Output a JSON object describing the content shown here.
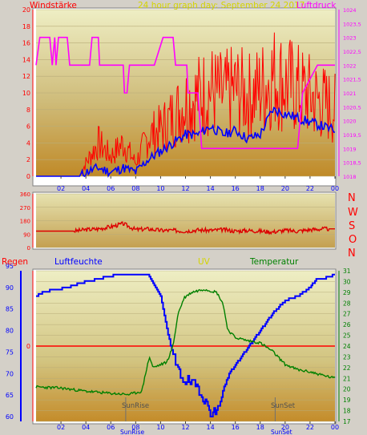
{
  "header": {
    "left_title": "Windstärke",
    "center_title": "24 hour graph day:  September 24 2017",
    "right_title": "Luftdruck"
  },
  "direction_labels": [
    "N",
    "W",
    "S",
    "O",
    "N"
  ],
  "bottom_header": {
    "regen": "Regen",
    "luftfeuchte": "Luftfeuchte",
    "uv": "UV",
    "temperatur": "Temperatur"
  },
  "colors": {
    "wind_gust": "#ff0000",
    "wind_avg": "#0000ff",
    "pressure": "#ff00ff",
    "direction": "#dd0000",
    "humidity": "#0000ff",
    "temperature": "#008000",
    "rain": "#ff0000",
    "title_red": "#ff0000",
    "title_yellow": "#d4d400",
    "axis_blue": "#0000ff",
    "axis_green": "#008000"
  },
  "chart_data": [
    {
      "type": "line",
      "panel": "wind_pressure",
      "x_ticks": [
        "02",
        "04",
        "06",
        "08",
        "10",
        "12",
        "14",
        "16",
        "18",
        "20",
        "22",
        "00"
      ],
      "ylim_left": [
        0,
        20
      ],
      "yticks_left": [
        0,
        2,
        4,
        6,
        8,
        10,
        12,
        14,
        16,
        18,
        20
      ],
      "ylim_right": [
        1018,
        1024
      ],
      "yticks_right": [
        "1018",
        "1018,5",
        "1019",
        "1019,5",
        "1020",
        "1020,5",
        "1021",
        "1021,5",
        "1022",
        "1022,5",
        "1023",
        "1023,5",
        "1024"
      ],
      "series": [
        {
          "name": "Windstärke",
          "axis": "left",
          "x": [
            0,
            3,
            3.5,
            4,
            5,
            6,
            7,
            8,
            9,
            10,
            11,
            12,
            13,
            14,
            15,
            16,
            17,
            18,
            19,
            20,
            21,
            22,
            23,
            24
          ],
          "values": [
            0,
            0,
            0,
            2,
            5,
            3,
            5,
            2,
            6,
            7,
            9,
            11,
            12,
            13,
            12,
            13,
            12,
            13,
            15,
            14,
            13,
            12,
            11,
            10
          ]
        },
        {
          "name": "Windstärke avg",
          "axis": "left",
          "x": [
            0,
            3,
            3.5,
            4,
            5,
            6,
            7,
            8,
            9,
            10,
            11,
            12,
            13,
            14,
            15,
            16,
            17,
            18,
            19,
            20,
            21,
            22,
            23,
            24
          ],
          "values": [
            0,
            0,
            0,
            0.5,
            1,
            0.5,
            1,
            0.5,
            2,
            3,
            4,
            5,
            5,
            6,
            5,
            5.5,
            4.5,
            5,
            8,
            7.5,
            7,
            6.5,
            6,
            5.5
          ]
        },
        {
          "name": "Luftdruck",
          "axis": "right",
          "x": [
            0,
            0.3,
            1.1,
            1.3,
            1.5,
            1.6,
            1.8,
            2.5,
            2.7,
            4.3,
            4.5,
            5.0,
            5.1,
            7.0,
            7.1,
            7.3,
            7.5,
            7.6,
            9.5,
            10.2,
            11.0,
            11.2,
            12.1,
            12.2,
            13.0,
            13.3,
            13.4,
            16.4,
            16.5,
            18.9,
            19.5,
            20.5,
            21.0,
            21.4,
            22.6,
            23.3,
            24
          ],
          "values": [
            1022,
            1023,
            1023,
            1022,
            1023,
            1022,
            1023,
            1023,
            1022,
            1022,
            1023,
            1023,
            1022,
            1022,
            1021,
            1021,
            1022,
            1022,
            1022,
            1023,
            1023,
            1022,
            1022,
            1021,
            1021,
            1019,
            1019,
            1019,
            1019,
            1019,
            1019,
            1019,
            1019,
            1021,
            1022,
            1022,
            1022
          ]
        }
      ]
    },
    {
      "type": "line",
      "panel": "wind_direction",
      "x_ticks": [
        "02",
        "04",
        "06",
        "08",
        "10",
        "12",
        "14",
        "16",
        "18",
        "20",
        "22",
        "00"
      ],
      "ylim": [
        0,
        360
      ],
      "yticks": [
        0,
        90,
        180,
        270,
        360
      ],
      "series": [
        {
          "name": "Windrichtung",
          "x": [
            0,
            2,
            3,
            4,
            5,
            6,
            7,
            8,
            9,
            10,
            11,
            12,
            13,
            14,
            15,
            16,
            17,
            18,
            19,
            20,
            21,
            22,
            23,
            24
          ],
          "values": [
            110,
            110,
            110,
            120,
            125,
            140,
            160,
            120,
            125,
            115,
            115,
            110,
            118,
            115,
            120,
            110,
            115,
            110,
            105,
            115,
            110,
            120,
            125,
            125
          ]
        }
      ]
    },
    {
      "type": "line",
      "panel": "humidity_temperature",
      "x_ticks": [
        "02",
        "04",
        "06",
        "08",
        "10",
        "12",
        "14",
        "16",
        "18",
        "20",
        "22",
        "00"
      ],
      "ylim_left": [
        60,
        95
      ],
      "yticks_left": [
        60,
        65,
        70,
        75,
        80,
        85,
        90,
        95
      ],
      "ylim_right": [
        17,
        31
      ],
      "yticks_right": [
        17,
        18,
        19,
        20,
        21,
        22,
        23,
        24,
        25,
        26,
        27,
        28,
        29,
        30,
        31
      ],
      "annotations": [
        "SunRise",
        "SunSet"
      ],
      "series": [
        {
          "name": "Luftfeuchte",
          "axis": "left",
          "x": [
            0,
            0.6,
            2.5,
            3.5,
            5.0,
            6.5,
            8.0,
            9.0,
            10.0,
            10.6,
            11.2,
            11.7,
            12.3,
            13.0,
            14.0,
            14.5,
            15.0,
            15.5,
            16.0,
            17.0,
            18.0,
            19.0,
            20.0,
            21.0,
            22.0,
            22.5,
            23.0,
            24
          ],
          "values": [
            88,
            89,
            90,
            91,
            92,
            93,
            93,
            93,
            88,
            79,
            72,
            69,
            68,
            67,
            61,
            61,
            66,
            70,
            72,
            76,
            80,
            84,
            87,
            88,
            90,
            92,
            92,
            93
          ]
        },
        {
          "name": "Temperatur",
          "axis": "right",
          "x": [
            0,
            2,
            4,
            6,
            7.5,
            8.5,
            8.8,
            9.1,
            9.4,
            10.5,
            11.0,
            11.4,
            11.9,
            12.5,
            13.5,
            14.5,
            15.0,
            15.4,
            16.0,
            17.0,
            18.0,
            19.0,
            20.0,
            21.0,
            22.0,
            23.0,
            24
          ],
          "values": [
            20.2,
            20.1,
            19.8,
            19.6,
            19.5,
            19.8,
            21.5,
            23.0,
            22.0,
            22.5,
            24.0,
            27.0,
            28.5,
            29.0,
            29.3,
            29.0,
            28.0,
            25.5,
            24.8,
            24.5,
            24.3,
            23.5,
            22.3,
            21.8,
            21.6,
            21.3,
            21.0
          ]
        },
        {
          "name": "Regen",
          "axis": "rain",
          "x": [
            0,
            24
          ],
          "values": [
            0,
            0
          ]
        }
      ]
    }
  ]
}
